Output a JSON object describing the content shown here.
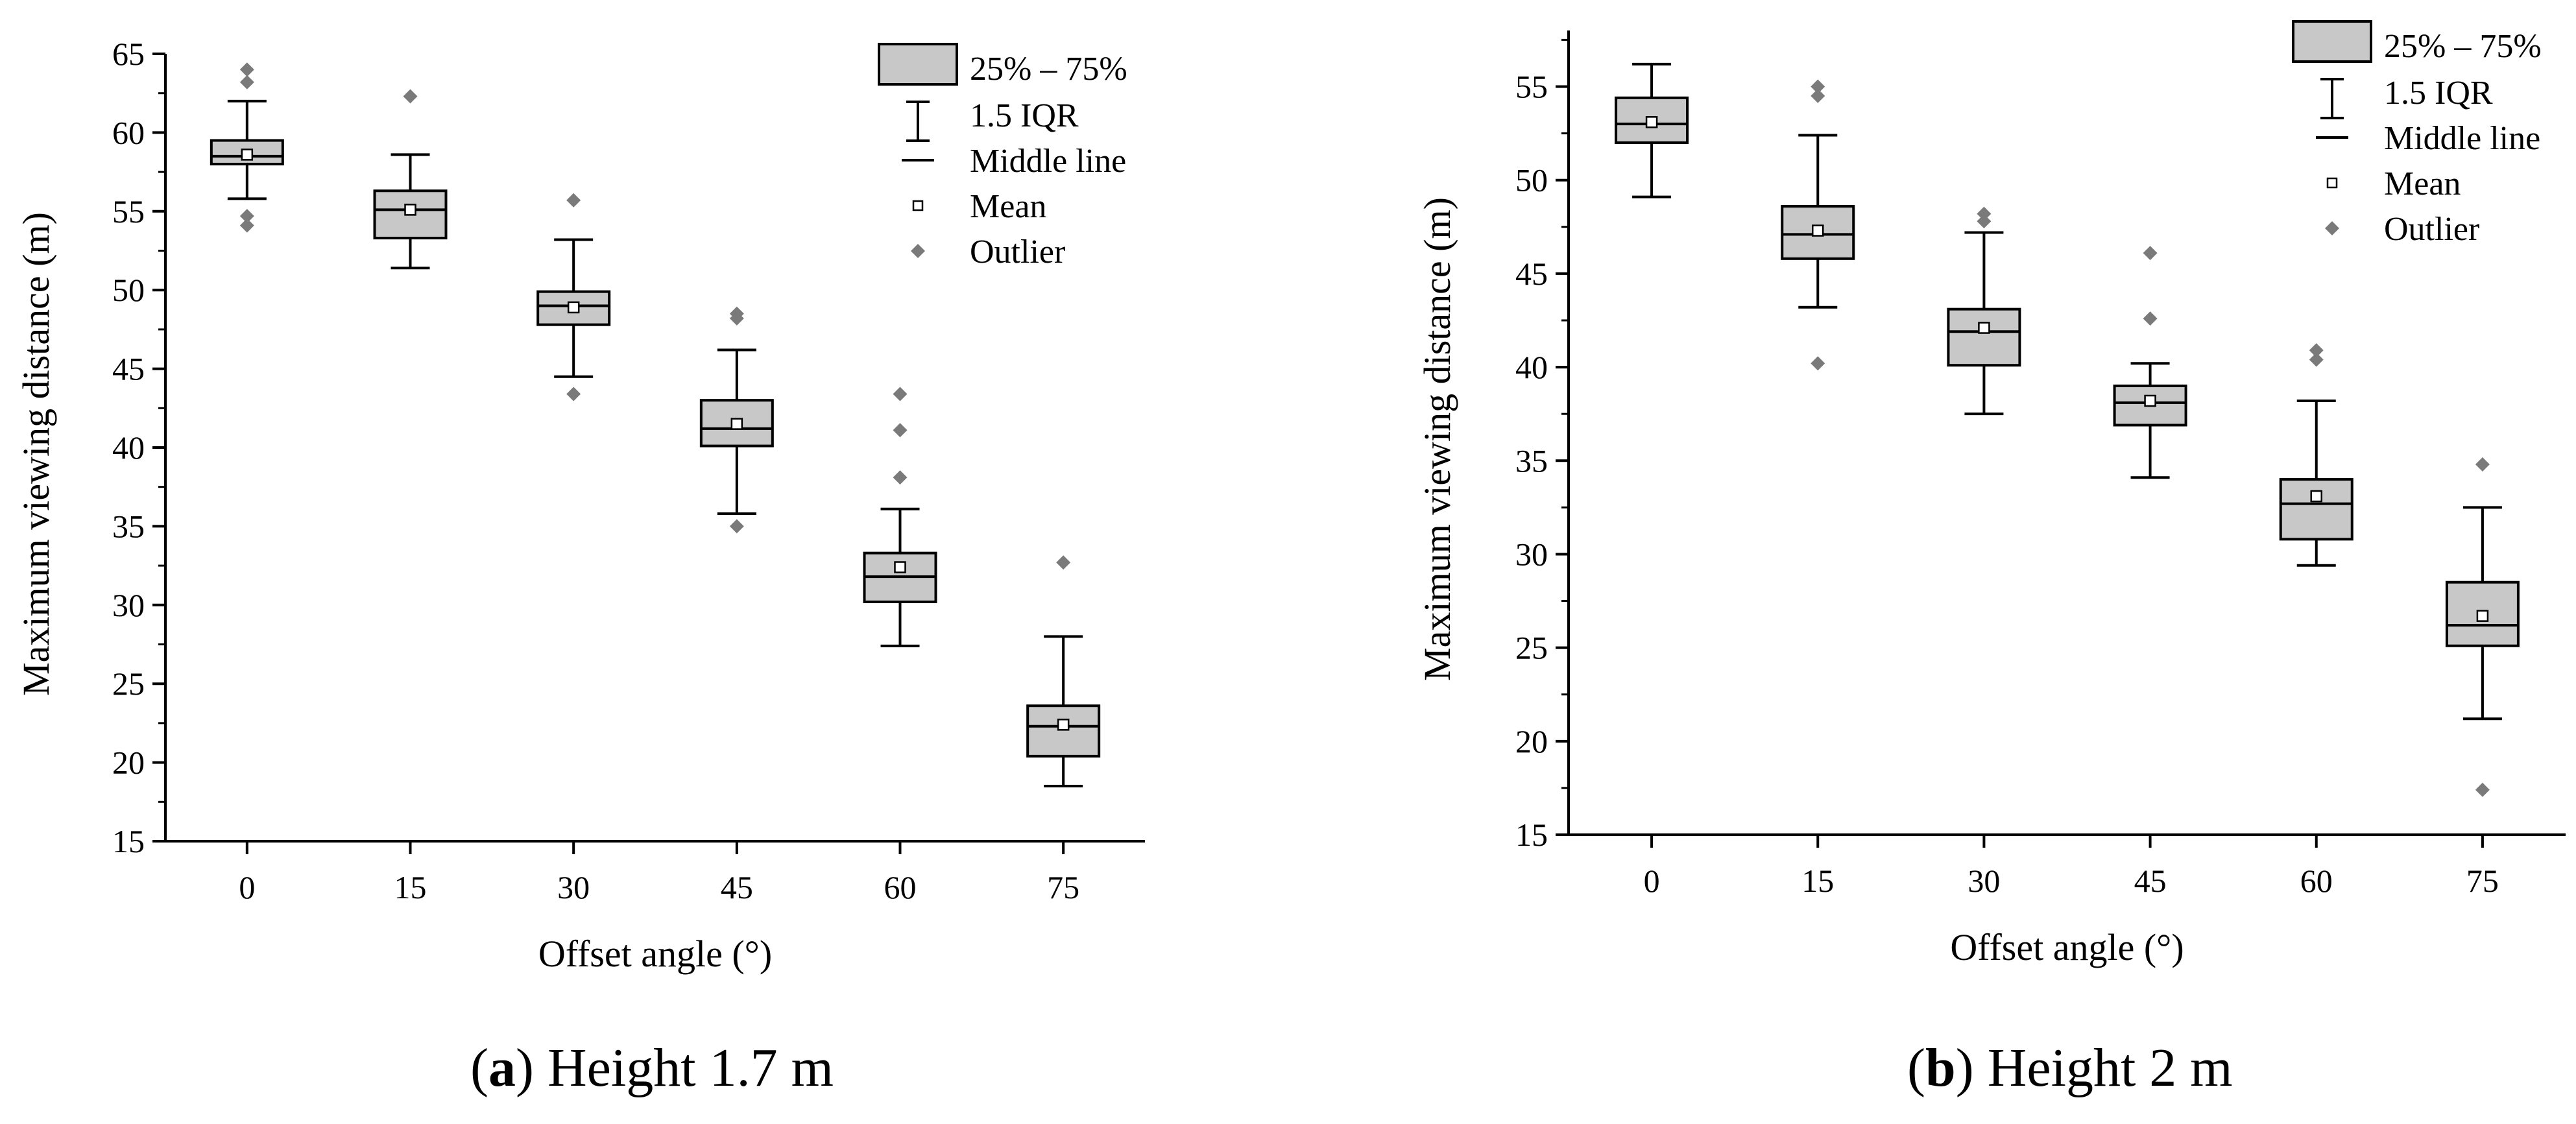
{
  "chart_data": [
    {
      "type": "box",
      "panel_letter": "a",
      "panel_title": "Height 1.7 m",
      "xlabel": "Offset angle (°)",
      "ylabel": "Maximum viewing distance (m)",
      "ylim": [
        15,
        65
      ],
      "yticks": [
        15,
        20,
        25,
        30,
        35,
        40,
        45,
        50,
        55,
        60,
        65
      ],
      "categories": [
        "0",
        "15",
        "30",
        "45",
        "60",
        "75"
      ],
      "boxes": [
        {
          "q1": 58.0,
          "median": 58.5,
          "q3": 59.5,
          "mean": 58.6,
          "whisker_low": 55.8,
          "whisker_high": 62.0,
          "outliers": [
            64.0,
            63.2,
            54.7,
            54.1
          ]
        },
        {
          "q1": 53.3,
          "median": 55.1,
          "q3": 56.3,
          "mean": 55.1,
          "whisker_low": 51.4,
          "whisker_high": 58.6,
          "outliers": [
            62.3
          ]
        },
        {
          "q1": 47.8,
          "median": 49.0,
          "q3": 49.9,
          "mean": 48.9,
          "whisker_low": 44.5,
          "whisker_high": 53.2,
          "outliers": [
            55.7,
            43.4
          ]
        },
        {
          "q1": 40.1,
          "median": 41.2,
          "q3": 43.0,
          "mean": 41.5,
          "whisker_low": 35.8,
          "whisker_high": 46.2,
          "outliers": [
            48.5,
            48.2,
            35.0
          ]
        },
        {
          "q1": 30.2,
          "median": 31.8,
          "q3": 33.3,
          "mean": 32.4,
          "whisker_low": 27.4,
          "whisker_high": 36.1,
          "outliers": [
            43.4,
            41.1,
            38.1
          ]
        },
        {
          "q1": 20.4,
          "median": 22.3,
          "q3": 23.6,
          "mean": 22.4,
          "whisker_low": 18.5,
          "whisker_high": 28.0,
          "outliers": [
            32.7
          ]
        }
      ],
      "legend": {
        "position": "top-right",
        "box_label": "25% – 75%",
        "whisker_label": "1.5 IQR",
        "median_label": "Middle line",
        "mean_label": "Mean",
        "outlier_label": "Outlier"
      }
    },
    {
      "type": "box",
      "panel_letter": "b",
      "panel_title": "Height 2 m",
      "xlabel": "Offset angle (°)",
      "ylabel": "Maximum viewing distance (m)",
      "ylim": [
        15,
        58
      ],
      "yticks": [
        15,
        20,
        25,
        30,
        35,
        40,
        45,
        50,
        55
      ],
      "categories": [
        "0",
        "15",
        "30",
        "45",
        "60",
        "75"
      ],
      "boxes": [
        {
          "q1": 52.0,
          "median": 53.0,
          "q3": 54.4,
          "mean": 53.1,
          "whisker_low": 49.1,
          "whisker_high": 56.2,
          "outliers": []
        },
        {
          "q1": 45.8,
          "median": 47.1,
          "q3": 48.6,
          "mean": 47.3,
          "whisker_low": 43.2,
          "whisker_high": 52.4,
          "outliers": [
            55.0,
            54.5,
            40.2
          ]
        },
        {
          "q1": 40.1,
          "median": 41.9,
          "q3": 43.1,
          "mean": 42.1,
          "whisker_low": 37.5,
          "whisker_high": 47.2,
          "outliers": [
            48.2,
            47.8
          ]
        },
        {
          "q1": 36.9,
          "median": 38.1,
          "q3": 39.0,
          "mean": 38.2,
          "whisker_low": 34.1,
          "whisker_high": 40.2,
          "outliers": [
            46.1,
            42.6
          ]
        },
        {
          "q1": 30.8,
          "median": 32.7,
          "q3": 34.0,
          "mean": 33.1,
          "whisker_low": 29.4,
          "whisker_high": 38.2,
          "outliers": [
            40.9,
            40.4
          ]
        },
        {
          "q1": 25.1,
          "median": 26.2,
          "q3": 28.5,
          "mean": 26.7,
          "whisker_low": 21.2,
          "whisker_high": 32.5,
          "outliers": [
            34.8,
            17.4
          ]
        }
      ],
      "legend": {
        "position": "top-right",
        "box_label": "25% – 75%",
        "whisker_label": "1.5 IQR",
        "median_label": "Middle line",
        "mean_label": "Mean",
        "outlier_label": "Outlier"
      }
    }
  ],
  "colors": {
    "box_fill": "#c8c8c8",
    "outlier": "#7a7a7a",
    "line": "#000000",
    "mean_fill": "#ffffff"
  }
}
